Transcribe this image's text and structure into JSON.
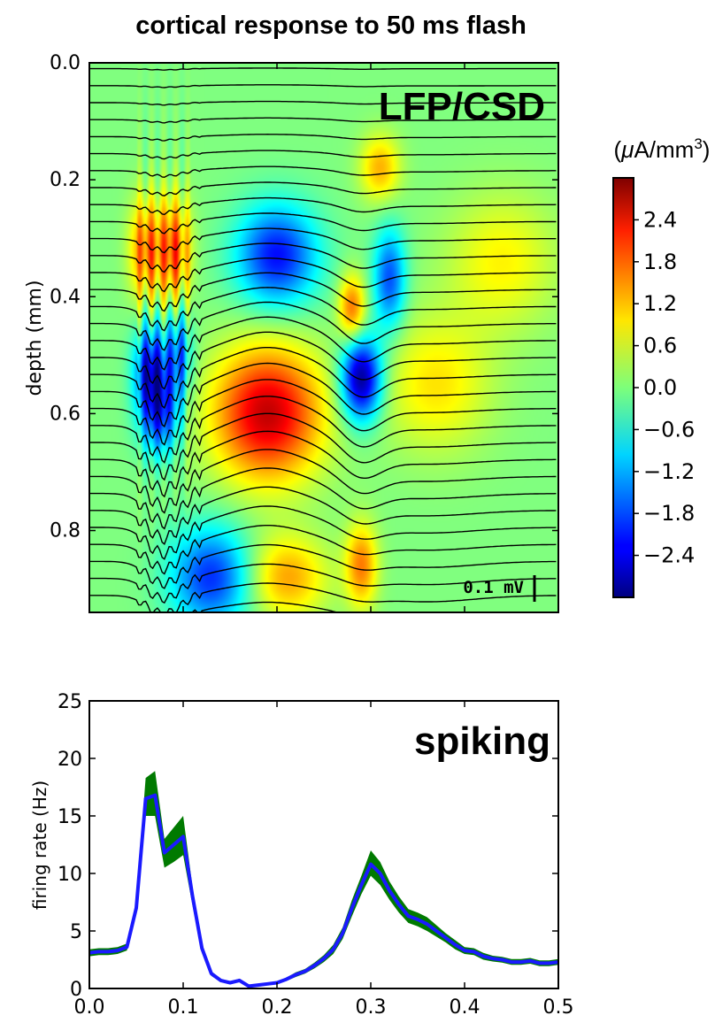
{
  "title": "cortical response to 50 ms flash",
  "chart_data": [
    {
      "type": "heatmap",
      "panel_label": "LFP/CSD",
      "ylabel": "depth (mm)",
      "ylim": [
        0.0,
        0.94
      ],
      "y_inverted": true,
      "xlim": [
        0.0,
        0.5
      ],
      "y_ticks": [
        "0.0",
        "0.2",
        "0.4",
        "0.6",
        "0.8"
      ],
      "colorbar": {
        "unit_prefix": "(",
        "unit_mu": "μ",
        "unit_main": "A/mm",
        "unit_sup": "3",
        "unit_suffix": ")",
        "ticks": [
          "2.4",
          "1.8",
          "1.2",
          "0.6",
          "0.0",
          "−0.6",
          "−1.2",
          "−1.8",
          "−2.4"
        ],
        "tick_values": [
          2.4,
          1.8,
          1.2,
          0.6,
          0.0,
          -0.6,
          -1.2,
          -1.8,
          -2.4
        ],
        "range": [
          -3.0,
          3.0
        ],
        "colormap": "jet"
      },
      "scale_bar": "0.1 mV",
      "csd_sources": [
        {
          "t": 0.06,
          "depth": 0.32,
          "amp": 1.6,
          "wt": 0.012,
          "wd": 0.06
        },
        {
          "t": 0.09,
          "depth": 0.32,
          "amp": 1.8,
          "wt": 0.012,
          "wd": 0.06
        },
        {
          "t": 0.075,
          "depth": 0.6,
          "amp": -2.0,
          "wt": 0.015,
          "wd": 0.05
        },
        {
          "t": 0.065,
          "depth": 0.52,
          "amp": -2.2,
          "wt": 0.012,
          "wd": 0.05
        },
        {
          "t": 0.095,
          "depth": 0.5,
          "amp": -1.6,
          "wt": 0.01,
          "wd": 0.05
        },
        {
          "t": 0.19,
          "depth": 0.6,
          "amp": 2.6,
          "wt": 0.04,
          "wd": 0.08
        },
        {
          "t": 0.2,
          "depth": 0.33,
          "amp": -2.2,
          "wt": 0.03,
          "wd": 0.06
        },
        {
          "t": 0.28,
          "depth": 0.42,
          "amp": 1.6,
          "wt": 0.01,
          "wd": 0.04
        },
        {
          "t": 0.29,
          "depth": 0.54,
          "amp": -3.0,
          "wt": 0.015,
          "wd": 0.05
        },
        {
          "t": 0.31,
          "depth": 0.18,
          "amp": 1.2,
          "wt": 0.015,
          "wd": 0.04
        },
        {
          "t": 0.32,
          "depth": 0.37,
          "amp": -1.8,
          "wt": 0.012,
          "wd": 0.06
        },
        {
          "t": 0.37,
          "depth": 0.55,
          "amp": 0.9,
          "wt": 0.04,
          "wd": 0.08
        },
        {
          "t": 0.13,
          "depth": 0.88,
          "amp": -2.0,
          "wt": 0.03,
          "wd": 0.06
        },
        {
          "t": 0.21,
          "depth": 0.88,
          "amp": 1.3,
          "wt": 0.03,
          "wd": 0.05
        },
        {
          "t": 0.29,
          "depth": 0.86,
          "amp": 1.5,
          "wt": 0.012,
          "wd": 0.05
        },
        {
          "t": 0.44,
          "depth": 0.34,
          "amp": 0.8,
          "wt": 0.04,
          "wd": 0.08
        }
      ]
    },
    {
      "type": "line",
      "panel_label": "spiking",
      "ylabel": "firing rate (Hz)",
      "xlim": [
        0.0,
        0.5
      ],
      "ylim": [
        0,
        25
      ],
      "x_ticks": [
        "0.0",
        "0.1",
        "0.2",
        "0.3",
        "0.4",
        "0.5"
      ],
      "y_ticks": [
        "0",
        "5",
        "10",
        "15",
        "20",
        "25"
      ],
      "x": [
        0.0,
        0.01,
        0.02,
        0.03,
        0.04,
        0.05,
        0.06,
        0.07,
        0.08,
        0.09,
        0.1,
        0.11,
        0.12,
        0.13,
        0.14,
        0.15,
        0.16,
        0.17,
        0.18,
        0.19,
        0.2,
        0.21,
        0.22,
        0.23,
        0.24,
        0.25,
        0.26,
        0.27,
        0.28,
        0.29,
        0.3,
        0.31,
        0.32,
        0.33,
        0.34,
        0.35,
        0.36,
        0.37,
        0.38,
        0.39,
        0.4,
        0.41,
        0.42,
        0.43,
        0.44,
        0.45,
        0.46,
        0.47,
        0.48,
        0.49,
        0.5
      ],
      "series": [
        {
          "color": "#1a1aff",
          "values": [
            3.1,
            3.2,
            3.2,
            3.3,
            3.6,
            7.0,
            16.5,
            16.8,
            11.8,
            12.5,
            13.2,
            8.0,
            3.5,
            1.3,
            0.7,
            0.5,
            0.7,
            0.2,
            0.3,
            0.4,
            0.5,
            0.8,
            1.2,
            1.5,
            2.0,
            2.6,
            3.4,
            4.8,
            7.0,
            9.0,
            10.8,
            10.0,
            8.5,
            7.3,
            6.3,
            6.0,
            5.6,
            5.0,
            4.4,
            3.8,
            3.3,
            3.2,
            2.8,
            2.6,
            2.5,
            2.3,
            2.3,
            2.4,
            2.2,
            2.2,
            2.3
          ]
        },
        {
          "color": "#007a00",
          "fill": "confidence band",
          "lower": [
            2.8,
            2.9,
            2.9,
            3.0,
            3.3,
            6.4,
            15.0,
            15.0,
            10.5,
            11.0,
            11.6,
            7.2,
            3.1,
            1.1,
            0.55,
            0.4,
            0.55,
            0.1,
            0.2,
            0.3,
            0.4,
            0.65,
            1.0,
            1.3,
            1.75,
            2.3,
            3.0,
            4.3,
            6.3,
            8.2,
            9.8,
            9.0,
            7.7,
            6.6,
            5.7,
            5.4,
            5.0,
            4.5,
            4.0,
            3.4,
            3.0,
            2.9,
            2.5,
            2.35,
            2.25,
            2.05,
            2.05,
            2.15,
            1.95,
            1.95,
            2.05
          ],
          "upper": [
            3.4,
            3.5,
            3.5,
            3.6,
            3.9,
            7.6,
            18.3,
            18.9,
            13.0,
            14.0,
            15.0,
            8.8,
            3.9,
            1.5,
            0.85,
            0.6,
            0.85,
            0.3,
            0.4,
            0.5,
            0.6,
            0.95,
            1.4,
            1.7,
            2.25,
            2.9,
            3.8,
            5.3,
            7.7,
            9.8,
            12.0,
            11.0,
            9.3,
            8.0,
            6.9,
            6.6,
            6.2,
            5.5,
            4.8,
            4.2,
            3.6,
            3.5,
            3.1,
            2.85,
            2.75,
            2.55,
            2.55,
            2.65,
            2.45,
            2.45,
            2.55
          ]
        }
      ]
    }
  ]
}
